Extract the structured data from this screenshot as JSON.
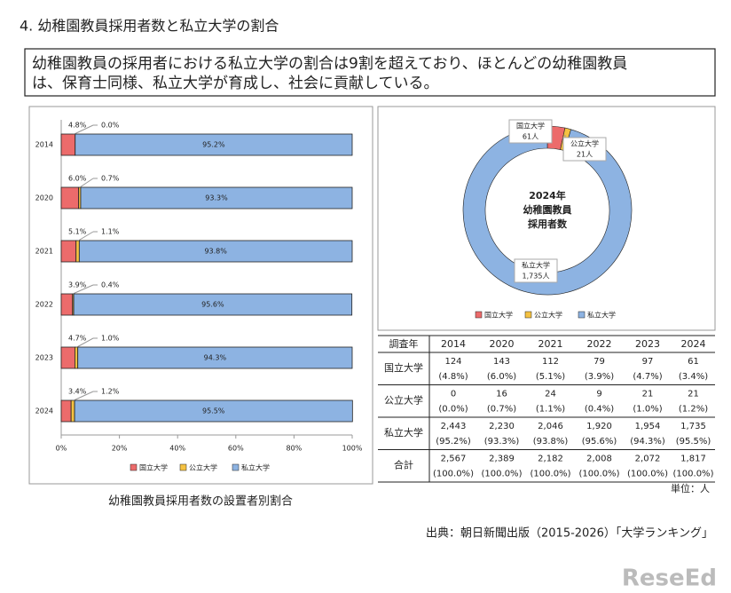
{
  "title": "4. 幼稚園教員採用者数と私立大学の割合",
  "summary": [
    "幼稚園教員の採用者における私立大学の割合は9割を超えており、ほとんどの幼稚園教員",
    "は、保育士同様、私立大学が育成し、社会に貢献している。"
  ],
  "chart_data": [
    {
      "type": "stacked-barh",
      "categories": [
        "2014",
        "2020",
        "2021",
        "2022",
        "2023",
        "2024"
      ],
      "series": [
        {
          "name": "国立大学",
          "color": "#ec6b6b",
          "values": [
            4.8,
            6.0,
            5.1,
            3.9,
            4.7,
            3.4
          ],
          "value_labels": [
            "4.8%",
            "6.0%",
            "5.1%",
            "3.9%",
            "4.7%",
            "3.4%"
          ]
        },
        {
          "name": "公立大学",
          "color": "#f5c242",
          "values": [
            0.0,
            0.7,
            1.1,
            0.4,
            1.0,
            1.2
          ],
          "value_labels": [
            "0.0%",
            "0.7%",
            "1.1%",
            "0.4%",
            "1.0%",
            "1.2%"
          ]
        },
        {
          "name": "私立大学",
          "color": "#8db3e2",
          "values": [
            95.2,
            93.3,
            93.8,
            95.6,
            94.3,
            95.5
          ],
          "value_labels": [
            "95.2%",
            "93.3%",
            "93.8%",
            "95.6%",
            "94.3%",
            "95.5%"
          ]
        }
      ],
      "xlim": [
        0,
        100
      ],
      "xticks": [
        {
          "value": 0,
          "label": "0%"
        },
        {
          "value": 20,
          "label": "20%"
        },
        {
          "value": 40,
          "label": "40%"
        },
        {
          "value": 60,
          "label": "60%"
        },
        {
          "value": 80,
          "label": "80%"
        },
        {
          "value": 100,
          "label": "100%"
        }
      ],
      "caption": "幼稚園教員採用者数の設置者別割合"
    },
    {
      "type": "donut",
      "center_text": [
        "2024年",
        "幼稚園教員",
        "採用者数"
      ],
      "categories": [
        "国立大学",
        "公立大学",
        "私立大学"
      ],
      "values": [
        61,
        21,
        1735
      ],
      "value_labels": [
        "61人",
        "21人",
        "1,735人"
      ],
      "colors": [
        "#ec6b6b",
        "#f5c242",
        "#8db3e2"
      ]
    }
  ],
  "table": {
    "header": [
      "調査年",
      "2014",
      "2020",
      "2021",
      "2022",
      "2023",
      "2024"
    ],
    "rows": [
      {
        "label": "国立大学",
        "counts": [
          "124",
          "143",
          "112",
          "79",
          "97",
          "61"
        ],
        "shares": [
          "(4.8%)",
          "(6.0%)",
          "(5.1%)",
          "(3.9%)",
          "(4.7%)",
          "(3.4%)"
        ]
      },
      {
        "label": "公立大学",
        "counts": [
          "0",
          "16",
          "24",
          "9",
          "21",
          "21"
        ],
        "shares": [
          "(0.0%)",
          "(0.7%)",
          "(1.1%)",
          "(0.4%)",
          "(1.0%)",
          "(1.2%)"
        ]
      },
      {
        "label": "私立大学",
        "counts": [
          "2,443",
          "2,230",
          "2,046",
          "1,920",
          "1,954",
          "1,735"
        ],
        "shares": [
          "(95.2%)",
          "(93.3%)",
          "(93.8%)",
          "(95.6%)",
          "(94.3%)",
          "(95.5%)"
        ]
      },
      {
        "label": "合計",
        "counts": [
          "2,567",
          "2,389",
          "2,182",
          "2,008",
          "2,072",
          "1,817"
        ],
        "shares": [
          "(100.0%)",
          "(100.0%)",
          "(100.0%)",
          "(100.0%)",
          "(100.0%)",
          "(100.0%)"
        ]
      }
    ],
    "unit": "単位：人"
  },
  "source": "出典：朝日新聞出版（2015-2026）「大学ランキング」",
  "logo": "ReseEd"
}
